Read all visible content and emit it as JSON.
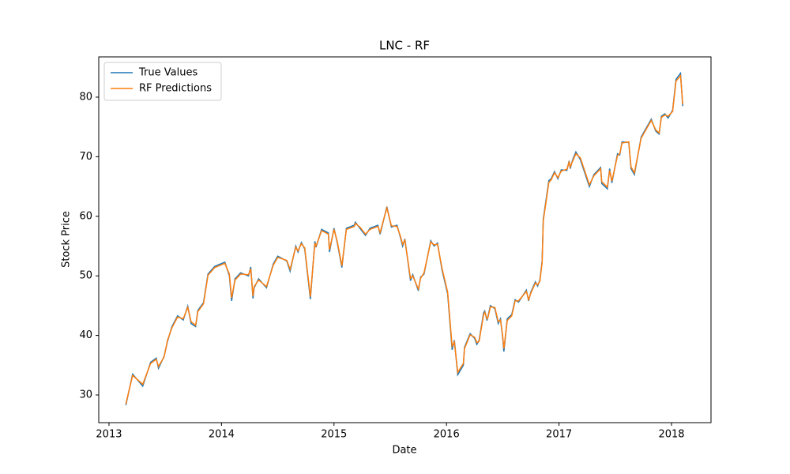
{
  "chart_data": {
    "type": "line",
    "title": "LNC - RF",
    "x_label": "Date",
    "y_label": "Stock Price",
    "x": [
      2013.15,
      2013.21,
      2013.3,
      2013.37,
      2013.42,
      2013.44,
      2013.49,
      2013.52,
      2013.56,
      2013.61,
      2013.66,
      2013.7,
      2013.73,
      2013.77,
      2013.79,
      2013.84,
      2013.88,
      2013.94,
      2014.03,
      2014.07,
      2014.09,
      2014.12,
      2014.17,
      2014.24,
      2014.26,
      2014.28,
      2014.29,
      2014.33,
      2014.4,
      2014.46,
      2014.5,
      2014.58,
      2014.61,
      2014.66,
      2014.68,
      2014.71,
      2014.74,
      2014.79,
      2014.83,
      2014.84,
      2014.89,
      2014.95,
      2014.96,
      2015.0,
      2015.03,
      2015.07,
      2015.11,
      2015.18,
      2015.19,
      2015.23,
      2015.28,
      2015.32,
      2015.39,
      2015.41,
      2015.47,
      2015.51,
      2015.56,
      2015.59,
      2015.61,
      2015.63,
      2015.68,
      2015.7,
      2015.75,
      2015.77,
      2015.8,
      2015.86,
      2015.89,
      2015.92,
      2015.96,
      2016.01,
      2016.05,
      2016.07,
      2016.1,
      2016.15,
      2016.16,
      2016.21,
      2016.25,
      2016.27,
      2016.29,
      2016.33,
      2016.34,
      2016.36,
      2016.37,
      2016.39,
      2016.43,
      2016.46,
      2016.48,
      2016.5,
      2016.51,
      2016.54,
      2016.58,
      2016.61,
      2016.64,
      2016.71,
      2016.73,
      2016.75,
      2016.79,
      2016.81,
      2016.83,
      2016.85,
      2016.86,
      2016.91,
      2016.93,
      2016.96,
      2016.99,
      2017.02,
      2017.07,
      2017.09,
      2017.1,
      2017.12,
      2017.15,
      2017.19,
      2017.27,
      2017.31,
      2017.37,
      2017.38,
      2017.43,
      2017.45,
      2017.47,
      2017.52,
      2017.54,
      2017.56,
      2017.62,
      2017.64,
      2017.67,
      2017.73,
      2017.82,
      2017.86,
      2017.89,
      2017.91,
      2017.94,
      2017.97,
      2018.01,
      2018.04,
      2018.08,
      2018.1
    ],
    "series": [
      {
        "name": "True Values",
        "color": "#1f77b4",
        "values": [
          28.3,
          33.5,
          31.5,
          35.5,
          36.2,
          34.5,
          36.5,
          39,
          41.5,
          43.3,
          42.6,
          44.9,
          42,
          41.5,
          44.2,
          45.5,
          50.3,
          51.6,
          52.3,
          50,
          45.8,
          49.5,
          50.5,
          50,
          51.5,
          46.2,
          48,
          49.5,
          48,
          52,
          53.3,
          52.5,
          50.8,
          55,
          54,
          55.6,
          54.5,
          46.1,
          55.8,
          54.8,
          57.8,
          57.2,
          54,
          58,
          55.5,
          51.4,
          58,
          58.5,
          59,
          58,
          56.8,
          58,
          58.5,
          57,
          61.6,
          58.2,
          58.5,
          56.5,
          55,
          56.2,
          49.2,
          50.2,
          47.5,
          49.8,
          50.3,
          55.9,
          55,
          55.5,
          51,
          47,
          37.6,
          39.2,
          33.4,
          35,
          38,
          40.3,
          39.5,
          38.5,
          39.2,
          43.8,
          44.1,
          42.5,
          43.3,
          45,
          44.5,
          42,
          42.8,
          39.5,
          37.3,
          42.8,
          43.5,
          46,
          45.6,
          47.6,
          45.8,
          47.3,
          49,
          48.3,
          49.3,
          52.5,
          59.5,
          66,
          66.3,
          67.5,
          66.3,
          67.8,
          67.7,
          69.3,
          68,
          69.4,
          70.8,
          69.5,
          65,
          67,
          68.2,
          65.5,
          64.6,
          68,
          65.6,
          70.5,
          70.3,
          72.5,
          72.4,
          68,
          67,
          73.3,
          76.3,
          74.3,
          73.8,
          76.8,
          77.2,
          76.5,
          77.8,
          83,
          84,
          78.5
        ]
      },
      {
        "name": "RF Predictions",
        "color": "#ff7f0e",
        "values": [
          28.5,
          33.3,
          31.8,
          35.3,
          36.0,
          34.8,
          36.4,
          39.2,
          41.3,
          43.1,
          42.8,
          44.7,
          42.3,
          41.7,
          44.0,
          45.3,
          50.1,
          51.4,
          52.1,
          50.3,
          46.3,
          49.3,
          50.3,
          50.2,
          51.2,
          46.6,
          48.2,
          49.3,
          48.2,
          51.8,
          53.1,
          52.6,
          51.1,
          54.8,
          54.2,
          55.4,
          54.7,
          46.5,
          55.5,
          55.0,
          57.6,
          57.0,
          54.4,
          57.8,
          55.7,
          51.7,
          57.8,
          58.3,
          58.8,
          58.2,
          57.0,
          57.8,
          58.3,
          57.3,
          61.4,
          58.4,
          58.3,
          56.7,
          55.3,
          56.0,
          49.6,
          50.0,
          47.8,
          49.6,
          50.5,
          55.7,
          55.2,
          55.3,
          51.3,
          47.3,
          38.2,
          38.9,
          33.8,
          35.3,
          37.8,
          40.1,
          39.7,
          38.8,
          39.0,
          43.5,
          43.9,
          42.8,
          43.1,
          44.8,
          44.7,
          42.3,
          42.6,
          39.8,
          37.8,
          42.5,
          43.3,
          45.8,
          45.8,
          47.4,
          46.0,
          47.1,
          48.8,
          48.5,
          49.1,
          52.2,
          59.2,
          65.7,
          66.1,
          67.3,
          66.5,
          67.6,
          67.9,
          69.1,
          68.3,
          69.2,
          70.5,
          69.8,
          65.3,
          66.8,
          68.0,
          65.8,
          64.9,
          67.7,
          65.9,
          70.2,
          70.5,
          72.3,
          72.5,
          68.3,
          67.3,
          73.1,
          76.1,
          74.5,
          74.0,
          76.6,
          77.0,
          76.8,
          77.6,
          82.7,
          83.6,
          78.8
        ]
      }
    ],
    "xlim": [
      2012.909,
      2018.351
    ],
    "xticks": [
      2013,
      2014,
      2015,
      2016,
      2017,
      2018
    ],
    "ylim": [
      25.36,
      86.76
    ],
    "yticks": [
      30,
      40,
      50,
      60,
      70,
      80
    ],
    "grid": false,
    "legend": "upper left"
  }
}
